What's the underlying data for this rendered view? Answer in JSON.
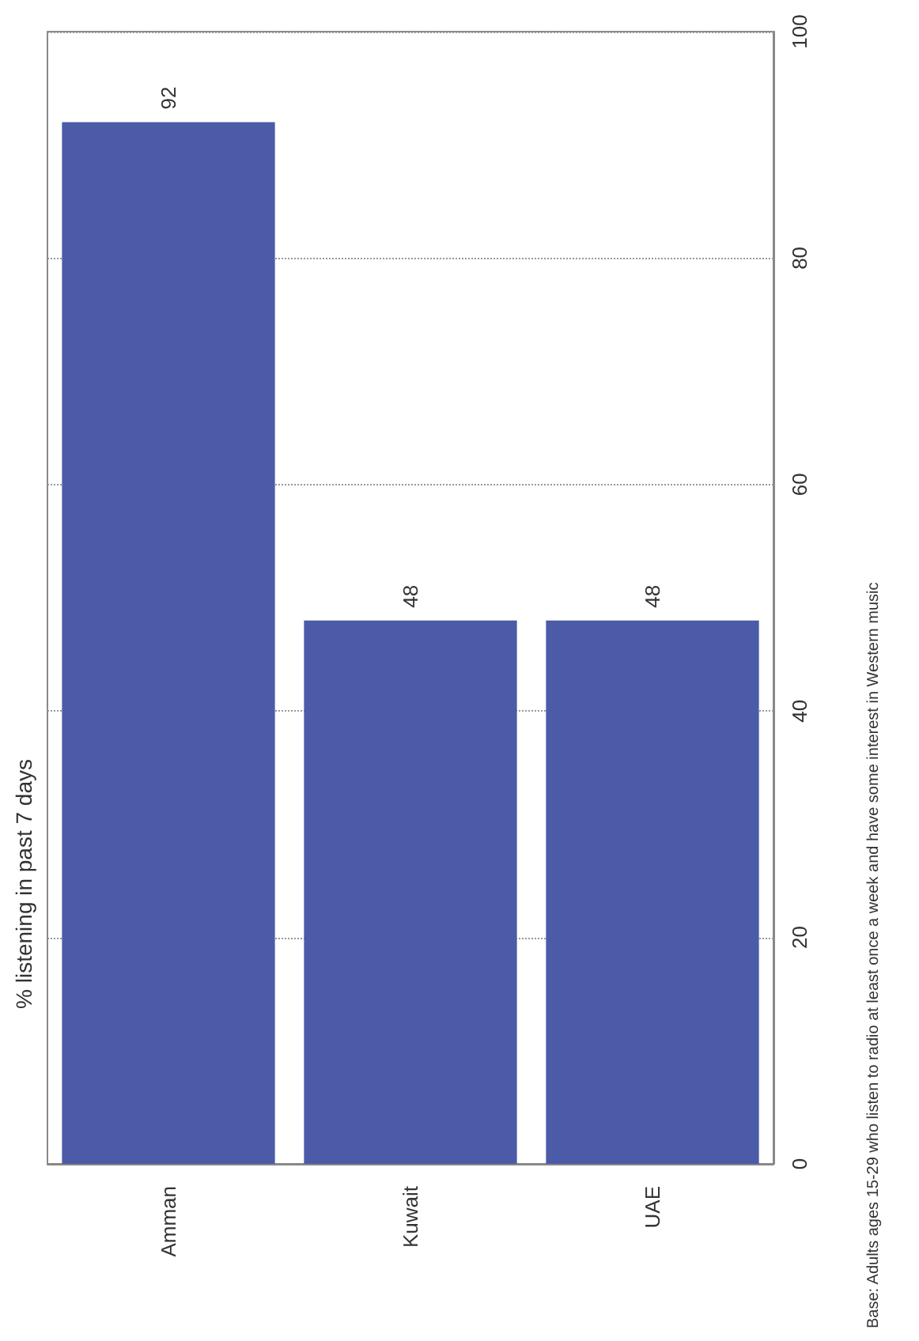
{
  "chart_data": {
    "type": "bar",
    "title": "% listening in past 7 days",
    "categories": [
      "Amman",
      "Kuwait",
      "UAE"
    ],
    "values": [
      92,
      48,
      48
    ],
    "color": "#4b5ba8",
    "ylim": [
      0,
      100
    ],
    "yticks": [
      0,
      20,
      40,
      60,
      80,
      100
    ],
    "grid": "y",
    "data_labels": true,
    "annotations": [
      "Base: Adults ages 15-29 who listen to radio at least once a week and have some interest in Western music"
    ]
  }
}
